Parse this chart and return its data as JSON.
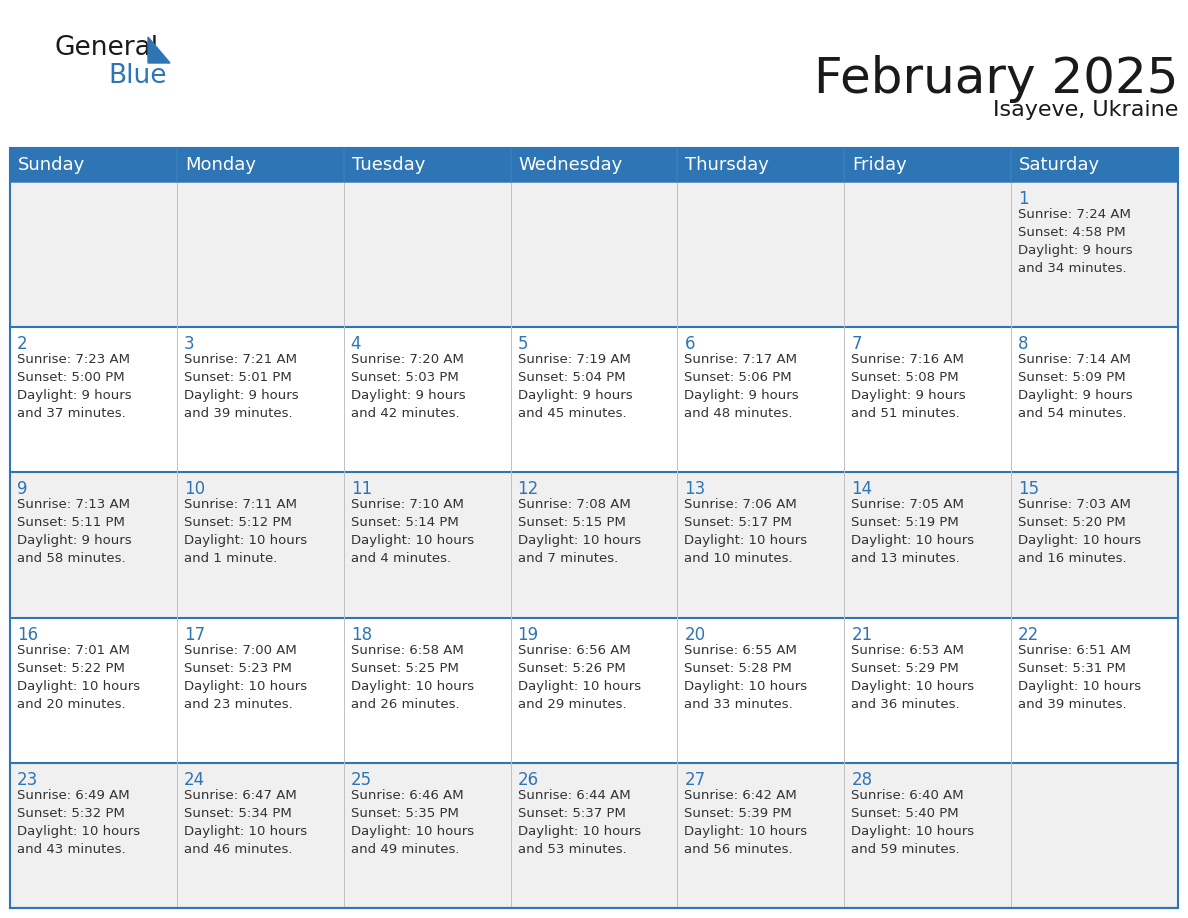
{
  "title": "February 2025",
  "subtitle": "Isayeve, Ukraine",
  "header_bg": "#2E75B6",
  "header_text_color": "#FFFFFF",
  "cell_bg_light": "#f0f0f0",
  "cell_bg_white": "#ffffff",
  "cell_border_color": "#2E75B6",
  "day_number_color": "#2E75B6",
  "cell_text_color": "#333333",
  "row_divider_color": "#2E75B6",
  "col_divider_color": "#c0c0c0",
  "days_of_week": [
    "Sunday",
    "Monday",
    "Tuesday",
    "Wednesday",
    "Thursday",
    "Friday",
    "Saturday"
  ],
  "calendar_data": [
    [
      {
        "day": "",
        "info": ""
      },
      {
        "day": "",
        "info": ""
      },
      {
        "day": "",
        "info": ""
      },
      {
        "day": "",
        "info": ""
      },
      {
        "day": "",
        "info": ""
      },
      {
        "day": "",
        "info": ""
      },
      {
        "day": "1",
        "info": "Sunrise: 7:24 AM\nSunset: 4:58 PM\nDaylight: 9 hours\nand 34 minutes."
      }
    ],
    [
      {
        "day": "2",
        "info": "Sunrise: 7:23 AM\nSunset: 5:00 PM\nDaylight: 9 hours\nand 37 minutes."
      },
      {
        "day": "3",
        "info": "Sunrise: 7:21 AM\nSunset: 5:01 PM\nDaylight: 9 hours\nand 39 minutes."
      },
      {
        "day": "4",
        "info": "Sunrise: 7:20 AM\nSunset: 5:03 PM\nDaylight: 9 hours\nand 42 minutes."
      },
      {
        "day": "5",
        "info": "Sunrise: 7:19 AM\nSunset: 5:04 PM\nDaylight: 9 hours\nand 45 minutes."
      },
      {
        "day": "6",
        "info": "Sunrise: 7:17 AM\nSunset: 5:06 PM\nDaylight: 9 hours\nand 48 minutes."
      },
      {
        "day": "7",
        "info": "Sunrise: 7:16 AM\nSunset: 5:08 PM\nDaylight: 9 hours\nand 51 minutes."
      },
      {
        "day": "8",
        "info": "Sunrise: 7:14 AM\nSunset: 5:09 PM\nDaylight: 9 hours\nand 54 minutes."
      }
    ],
    [
      {
        "day": "9",
        "info": "Sunrise: 7:13 AM\nSunset: 5:11 PM\nDaylight: 9 hours\nand 58 minutes."
      },
      {
        "day": "10",
        "info": "Sunrise: 7:11 AM\nSunset: 5:12 PM\nDaylight: 10 hours\nand 1 minute."
      },
      {
        "day": "11",
        "info": "Sunrise: 7:10 AM\nSunset: 5:14 PM\nDaylight: 10 hours\nand 4 minutes."
      },
      {
        "day": "12",
        "info": "Sunrise: 7:08 AM\nSunset: 5:15 PM\nDaylight: 10 hours\nand 7 minutes."
      },
      {
        "day": "13",
        "info": "Sunrise: 7:06 AM\nSunset: 5:17 PM\nDaylight: 10 hours\nand 10 minutes."
      },
      {
        "day": "14",
        "info": "Sunrise: 7:05 AM\nSunset: 5:19 PM\nDaylight: 10 hours\nand 13 minutes."
      },
      {
        "day": "15",
        "info": "Sunrise: 7:03 AM\nSunset: 5:20 PM\nDaylight: 10 hours\nand 16 minutes."
      }
    ],
    [
      {
        "day": "16",
        "info": "Sunrise: 7:01 AM\nSunset: 5:22 PM\nDaylight: 10 hours\nand 20 minutes."
      },
      {
        "day": "17",
        "info": "Sunrise: 7:00 AM\nSunset: 5:23 PM\nDaylight: 10 hours\nand 23 minutes."
      },
      {
        "day": "18",
        "info": "Sunrise: 6:58 AM\nSunset: 5:25 PM\nDaylight: 10 hours\nand 26 minutes."
      },
      {
        "day": "19",
        "info": "Sunrise: 6:56 AM\nSunset: 5:26 PM\nDaylight: 10 hours\nand 29 minutes."
      },
      {
        "day": "20",
        "info": "Sunrise: 6:55 AM\nSunset: 5:28 PM\nDaylight: 10 hours\nand 33 minutes."
      },
      {
        "day": "21",
        "info": "Sunrise: 6:53 AM\nSunset: 5:29 PM\nDaylight: 10 hours\nand 36 minutes."
      },
      {
        "day": "22",
        "info": "Sunrise: 6:51 AM\nSunset: 5:31 PM\nDaylight: 10 hours\nand 39 minutes."
      }
    ],
    [
      {
        "day": "23",
        "info": "Sunrise: 6:49 AM\nSunset: 5:32 PM\nDaylight: 10 hours\nand 43 minutes."
      },
      {
        "day": "24",
        "info": "Sunrise: 6:47 AM\nSunset: 5:34 PM\nDaylight: 10 hours\nand 46 minutes."
      },
      {
        "day": "25",
        "info": "Sunrise: 6:46 AM\nSunset: 5:35 PM\nDaylight: 10 hours\nand 49 minutes."
      },
      {
        "day": "26",
        "info": "Sunrise: 6:44 AM\nSunset: 5:37 PM\nDaylight: 10 hours\nand 53 minutes."
      },
      {
        "day": "27",
        "info": "Sunrise: 6:42 AM\nSunset: 5:39 PM\nDaylight: 10 hours\nand 56 minutes."
      },
      {
        "day": "28",
        "info": "Sunrise: 6:40 AM\nSunset: 5:40 PM\nDaylight: 10 hours\nand 59 minutes."
      },
      {
        "day": "",
        "info": ""
      }
    ]
  ],
  "logo_general_color": "#1a1a1a",
  "logo_blue_color": "#2E75B6",
  "title_fontsize": 36,
  "subtitle_fontsize": 16,
  "header_fontsize": 13,
  "day_number_fontsize": 12,
  "cell_info_fontsize": 9.5
}
